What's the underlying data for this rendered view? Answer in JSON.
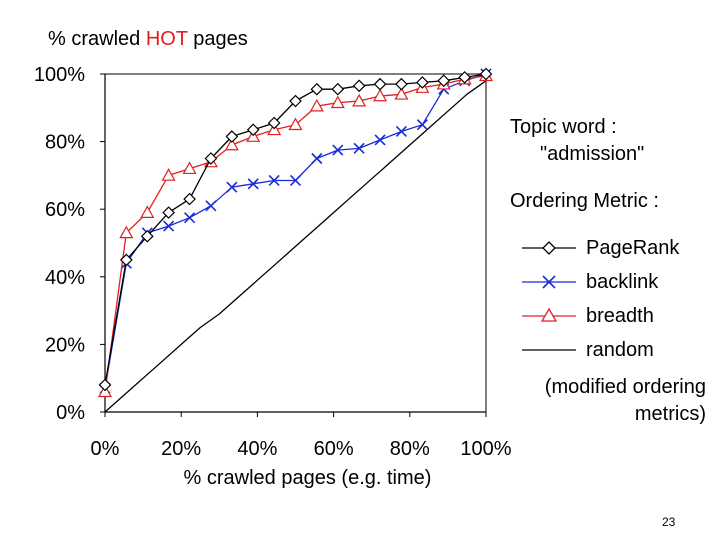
{
  "title": {
    "prefix": "% crawled ",
    "highlight": "HOT",
    "suffix": " pages",
    "highlight_color": "#e02020"
  },
  "legend": {
    "topic_label": "Topic word :",
    "topic_value": "\"admission\"",
    "metric_label": "Ordering Metric :",
    "note_line1": "(modified ordering",
    "note_line2": "metrics)"
  },
  "slide_number": "23",
  "chart_data": {
    "type": "line",
    "xlabel": "% crawled pages (e.g. time)",
    "ylabel": "% crawled HOT pages",
    "xlim": [
      0,
      100
    ],
    "ylim": [
      0,
      100
    ],
    "x_ticks": [
      "0%",
      "20%",
      "40%",
      "60%",
      "80%",
      "100%"
    ],
    "y_ticks": [
      "0%",
      "20%",
      "40%",
      "60%",
      "80%",
      "100%"
    ],
    "grid": false,
    "legend_position": "right",
    "series": [
      {
        "name": "PageRank",
        "color": "#000000",
        "marker": "diamond",
        "x": [
          0,
          5.6,
          11.1,
          16.7,
          22.2,
          27.8,
          33.3,
          38.9,
          44.4,
          50,
          55.6,
          61.1,
          66.7,
          72.2,
          77.8,
          83.3,
          88.9,
          94.4,
          100
        ],
        "y": [
          8,
          45,
          52,
          59,
          63,
          75,
          81.5,
          83.5,
          85.5,
          92,
          95.5,
          95.5,
          96.5,
          97,
          97,
          97.5,
          98,
          99,
          100
        ]
      },
      {
        "name": "backlink",
        "color": "#1a2bd6",
        "marker": "x",
        "x": [
          0,
          5.6,
          11.1,
          16.7,
          22.2,
          27.8,
          33.3,
          38.9,
          44.4,
          50,
          55.6,
          61.1,
          66.7,
          72.2,
          77.8,
          83.3,
          88.9,
          94.4,
          100
        ],
        "y": [
          7,
          44,
          53,
          55,
          57.5,
          61,
          66.5,
          67.5,
          68.5,
          68.5,
          75,
          77.5,
          78,
          80.5,
          83,
          85,
          95.5,
          98,
          100
        ]
      },
      {
        "name": "breadth",
        "color": "#e02020",
        "marker": "triangle",
        "x": [
          0,
          5.6,
          11.1,
          16.7,
          22.2,
          27.8,
          33.3,
          38.9,
          44.4,
          50,
          55.6,
          61.1,
          66.7,
          72.2,
          77.8,
          83.3,
          88.9,
          94.4,
          100
        ],
        "y": [
          6,
          53,
          59,
          70,
          72,
          74,
          79,
          81.5,
          83.5,
          85,
          90.5,
          91.5,
          92,
          93.5,
          94,
          96,
          97,
          98.5,
          99.5
        ]
      },
      {
        "name": "random",
        "color": "#000000",
        "marker": "none",
        "x": [
          0,
          5,
          10,
          15,
          20,
          25,
          30,
          35,
          40,
          45,
          50,
          55,
          60,
          65,
          70,
          75,
          80,
          85,
          90,
          95,
          100
        ],
        "y": [
          0,
          5,
          10,
          15,
          20,
          25,
          29,
          34,
          39,
          44,
          49,
          54,
          59,
          64,
          69,
          74,
          79,
          84,
          89,
          94,
          98
        ]
      }
    ]
  }
}
